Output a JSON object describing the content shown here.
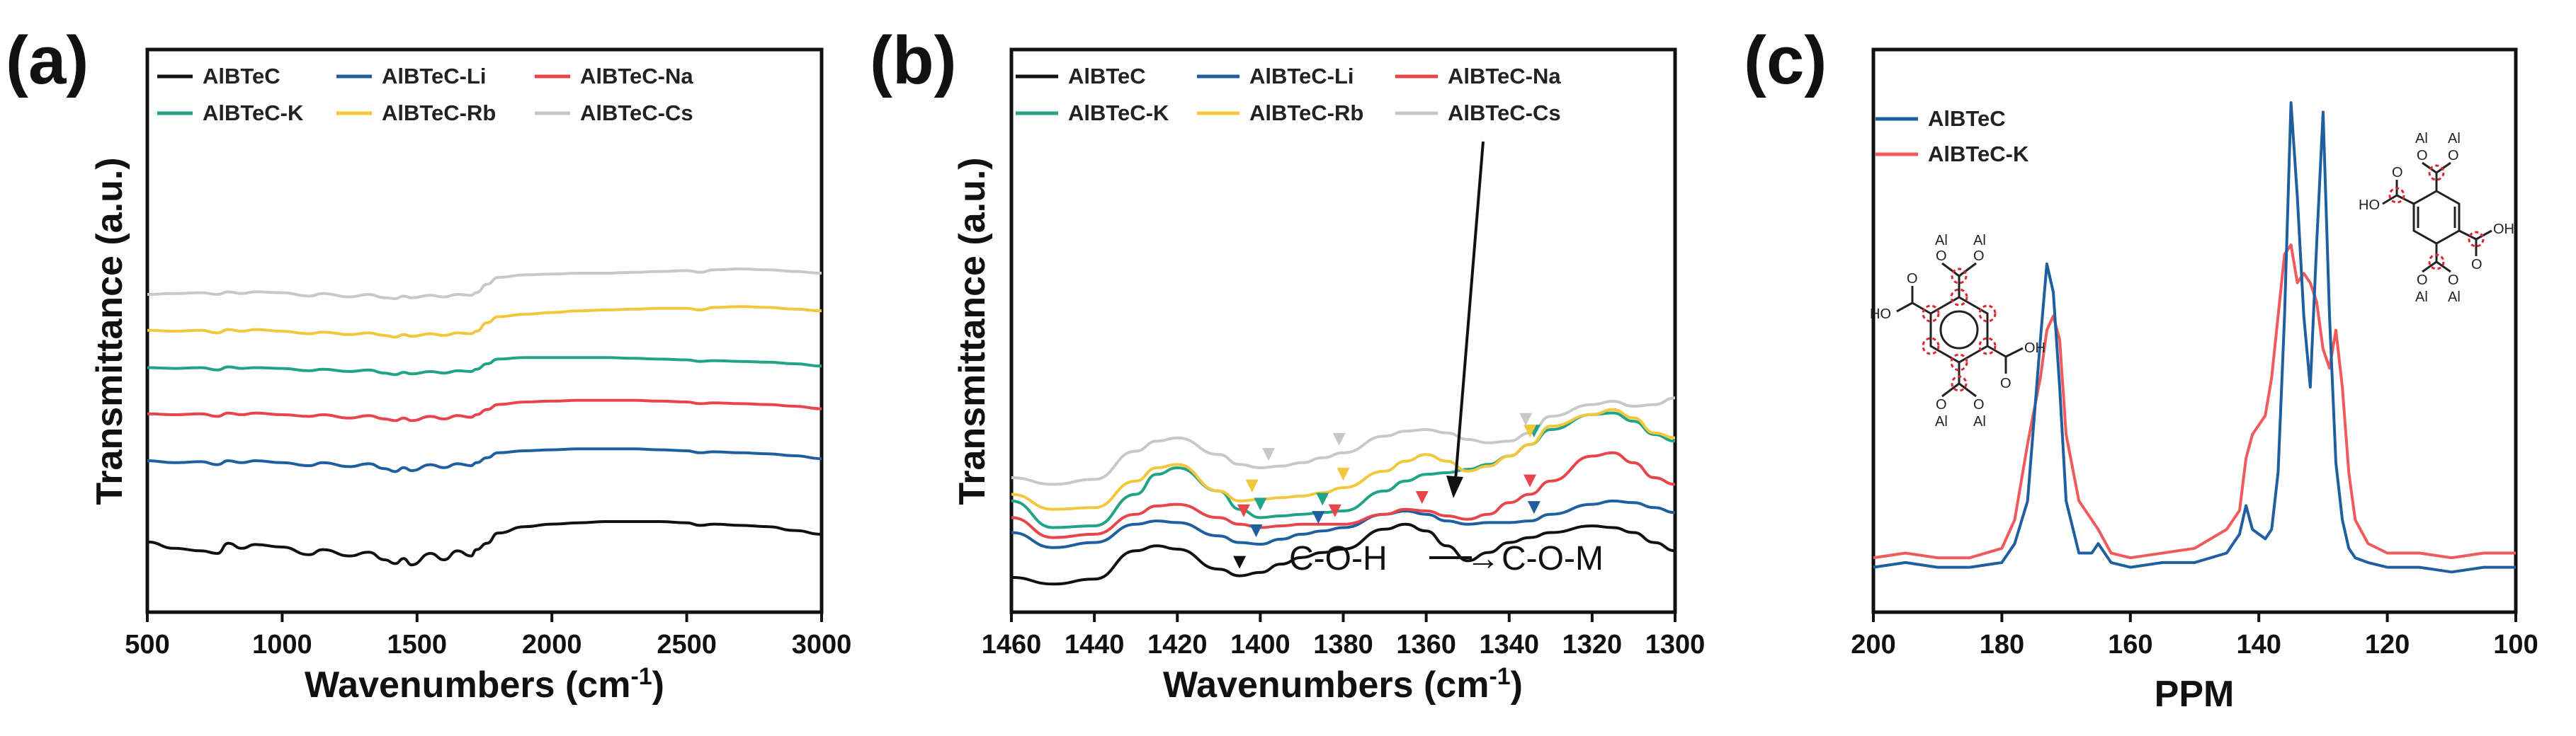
{
  "figure": {
    "panels": [
      "(a)",
      "(b)",
      "(c)"
    ]
  },
  "colors": {
    "AlBTeC": "#111111",
    "AlBTeC-Li": "#1f5fa0",
    "AlBTeC-Na": "#e8444a",
    "AlBTeC-K": "#20a386",
    "AlBTeC-Rb": "#f3c73b",
    "AlBTeC-Cs": "#c8c8c8",
    "nmr_AlBTeC": "#1f5fa0",
    "nmr_AlBTeC-K": "#f05a5a",
    "marker_red": "#d9282e"
  },
  "chart_data": [
    {
      "panel": "(a)",
      "type": "line",
      "title": "",
      "xlabel": "Wavenumbers (cm",
      "xlabel_sup": "-1",
      "xlabel_close": ")",
      "ylabel": "Transmittance (a.u.)",
      "xlim": [
        500,
        3000
      ],
      "xticks": [
        "500",
        "1000",
        "1500",
        "2000",
        "2500",
        "3000"
      ],
      "legend": [
        "AlBTeC",
        "AlBTeC-Li",
        "AlBTeC-Na",
        "AlBTeC-K",
        "AlBTeC-Rb",
        "AlBTeC-Cs"
      ],
      "legend_position": "top",
      "series_order_bottom_to_top": [
        "AlBTeC",
        "AlBTeC-Li",
        "AlBTeC-Na",
        "AlBTeC-K",
        "AlBTeC-Rb",
        "AlBTeC-Cs"
      ],
      "x": [
        500,
        600,
        700,
        760,
        800,
        850,
        900,
        1000,
        1100,
        1150,
        1250,
        1320,
        1380,
        1420,
        1450,
        1480,
        1550,
        1600,
        1650,
        1700,
        1720,
        1760,
        1800,
        1900,
        2000,
        2100,
        2200,
        2300,
        2400,
        2500,
        2550,
        2600,
        2700,
        2800,
        2900,
        3000
      ],
      "series": [
        {
          "name": "AlBTeC",
          "values": [
            0.19,
            0.14,
            0.12,
            0.1,
            0.18,
            0.14,
            0.17,
            0.15,
            0.09,
            0.13,
            0.08,
            0.11,
            0.05,
            0.02,
            0.06,
            0.01,
            0.1,
            0.05,
            0.12,
            0.08,
            0.13,
            0.18,
            0.26,
            0.31,
            0.33,
            0.34,
            0.35,
            0.35,
            0.35,
            0.34,
            0.32,
            0.33,
            0.32,
            0.31,
            0.28,
            0.25
          ]
        },
        {
          "name": "AlBTeC-Li",
          "values": [
            0.35,
            0.33,
            0.34,
            0.31,
            0.35,
            0.33,
            0.35,
            0.33,
            0.3,
            0.33,
            0.29,
            0.32,
            0.27,
            0.24,
            0.28,
            0.25,
            0.31,
            0.28,
            0.32,
            0.3,
            0.33,
            0.38,
            0.43,
            0.45,
            0.46,
            0.47,
            0.47,
            0.47,
            0.46,
            0.45,
            0.43,
            0.44,
            0.43,
            0.42,
            0.4,
            0.37
          ]
        },
        {
          "name": "AlBTeC-Na",
          "values": [
            0.46,
            0.45,
            0.46,
            0.43,
            0.47,
            0.45,
            0.47,
            0.45,
            0.43,
            0.45,
            0.41,
            0.44,
            0.4,
            0.38,
            0.41,
            0.38,
            0.43,
            0.4,
            0.44,
            0.42,
            0.45,
            0.51,
            0.57,
            0.6,
            0.61,
            0.62,
            0.62,
            0.62,
            0.61,
            0.6,
            0.58,
            0.59,
            0.58,
            0.57,
            0.55,
            0.52
          ]
        },
        {
          "name": "AlBTeC-K",
          "values": [
            0.55,
            0.54,
            0.55,
            0.52,
            0.56,
            0.54,
            0.55,
            0.54,
            0.51,
            0.53,
            0.5,
            0.52,
            0.48,
            0.46,
            0.49,
            0.47,
            0.5,
            0.48,
            0.51,
            0.5,
            0.53,
            0.6,
            0.66,
            0.68,
            0.68,
            0.68,
            0.68,
            0.67,
            0.66,
            0.65,
            0.63,
            0.64,
            0.63,
            0.62,
            0.6,
            0.57
          ]
        },
        {
          "name": "AlBTeC-Rb",
          "values": [
            0.61,
            0.6,
            0.61,
            0.58,
            0.62,
            0.6,
            0.62,
            0.6,
            0.57,
            0.59,
            0.56,
            0.58,
            0.55,
            0.53,
            0.56,
            0.54,
            0.57,
            0.55,
            0.58,
            0.57,
            0.6,
            0.7,
            0.77,
            0.8,
            0.82,
            0.84,
            0.85,
            0.86,
            0.87,
            0.87,
            0.85,
            0.88,
            0.89,
            0.88,
            0.86,
            0.84
          ]
        },
        {
          "name": "AlBTeC-Cs",
          "values": [
            0.7,
            0.71,
            0.72,
            0.7,
            0.73,
            0.71,
            0.73,
            0.72,
            0.68,
            0.71,
            0.67,
            0.7,
            0.66,
            0.65,
            0.68,
            0.66,
            0.69,
            0.67,
            0.7,
            0.69,
            0.72,
            0.82,
            0.9,
            0.93,
            0.94,
            0.95,
            0.95,
            0.96,
            0.97,
            0.98,
            0.96,
            0.99,
            1.0,
            0.99,
            0.97,
            0.95
          ]
        }
      ]
    },
    {
      "panel": "(b)",
      "type": "line",
      "title": "",
      "xlabel": "Wavenumbers (cm",
      "xlabel_sup": "-1",
      "xlabel_close": ")",
      "ylabel": "Transmittance (a.u.)",
      "xlim": [
        1460,
        1300
      ],
      "xticks": [
        "1460",
        "1440",
        "1420",
        "1400",
        "1380",
        "1360",
        "1340",
        "1320",
        "1300"
      ],
      "legend": [
        "AlBTeC",
        "AlBTeC-Li",
        "AlBTeC-Na",
        "AlBTeC-K",
        "AlBTeC-Rb",
        "AlBTeC-Cs"
      ],
      "legend_position": "top",
      "annotation": {
        "left": "C-O-H",
        "arrow": "→",
        "right": "C-O-M"
      },
      "x": [
        1460,
        1450,
        1440,
        1430,
        1425,
        1420,
        1410,
        1405,
        1400,
        1395,
        1390,
        1385,
        1380,
        1370,
        1365,
        1360,
        1355,
        1350,
        1345,
        1340,
        1335,
        1330,
        1320,
        1315,
        1310,
        1305,
        1300
      ],
      "series": [
        {
          "name": "AlBTeC",
          "values": [
            0.06,
            0.02,
            0.05,
            0.22,
            0.25,
            0.23,
            0.11,
            0.07,
            0.09,
            0.14,
            0.18,
            0.21,
            0.23,
            0.35,
            0.38,
            0.34,
            0.25,
            0.16,
            0.21,
            0.27,
            0.3,
            0.33,
            0.37,
            0.36,
            0.33,
            0.27,
            0.22
          ]
        },
        {
          "name": "AlBTeC-Li",
          "values": [
            0.33,
            0.24,
            0.27,
            0.38,
            0.4,
            0.39,
            0.31,
            0.27,
            0.26,
            0.29,
            0.32,
            0.34,
            0.36,
            0.44,
            0.46,
            0.44,
            0.4,
            0.38,
            0.39,
            0.39,
            0.4,
            0.44,
            0.5,
            0.52,
            0.51,
            0.48,
            0.45
          ]
        },
        {
          "name": "AlBTeC-Na",
          "values": [
            0.42,
            0.3,
            0.32,
            0.44,
            0.49,
            0.5,
            0.42,
            0.38,
            0.36,
            0.37,
            0.38,
            0.38,
            0.38,
            0.44,
            0.47,
            0.46,
            0.43,
            0.41,
            0.44,
            0.51,
            0.56,
            0.64,
            0.79,
            0.81,
            0.75,
            0.66,
            0.62
          ]
        },
        {
          "name": "AlBTeC-K",
          "values": [
            0.52,
            0.36,
            0.37,
            0.56,
            0.68,
            0.72,
            0.58,
            0.47,
            0.42,
            0.43,
            0.44,
            0.45,
            0.46,
            0.58,
            0.64,
            0.68,
            0.69,
            0.71,
            0.74,
            0.79,
            0.86,
            0.95,
            1.04,
            1.05,
            1.0,
            0.92,
            0.88
          ]
        },
        {
          "name": "AlBTeC-Rb",
          "values": [
            0.56,
            0.47,
            0.48,
            0.64,
            0.72,
            0.74,
            0.58,
            0.52,
            0.53,
            0.54,
            0.55,
            0.57,
            0.6,
            0.7,
            0.76,
            0.8,
            0.76,
            0.7,
            0.73,
            0.79,
            0.86,
            0.97,
            1.04,
            1.07,
            1.02,
            0.93,
            0.9
          ]
        },
        {
          "name": "AlBTeC-Cs",
          "values": [
            0.66,
            0.62,
            0.65,
            0.82,
            0.88,
            0.9,
            0.8,
            0.74,
            0.72,
            0.73,
            0.75,
            0.78,
            0.81,
            0.91,
            0.94,
            0.95,
            0.93,
            0.89,
            0.87,
            0.88,
            0.93,
            1.03,
            1.1,
            1.12,
            1.09,
            1.1,
            1.14
          ]
        }
      ],
      "markers": [
        {
          "series": "AlBTeC",
          "x": 1405
        },
        {
          "series": "AlBTeC-Li",
          "x": 1401
        },
        {
          "series": "AlBTeC-Li",
          "x": 1386
        },
        {
          "series": "AlBTeC-Li",
          "x": 1334
        },
        {
          "series": "AlBTeC-Na",
          "x": 1404
        },
        {
          "series": "AlBTeC-Na",
          "x": 1382
        },
        {
          "series": "AlBTeC-Na",
          "x": 1361
        },
        {
          "series": "AlBTeC-Na",
          "x": 1335
        },
        {
          "series": "AlBTeC-K",
          "x": 1400
        },
        {
          "series": "AlBTeC-K",
          "x": 1385
        },
        {
          "series": "AlBTeC-K",
          "x": 1334
        },
        {
          "series": "AlBTeC-Rb",
          "x": 1402
        },
        {
          "series": "AlBTeC-Rb",
          "x": 1380
        },
        {
          "series": "AlBTeC-Rb",
          "x": 1335
        },
        {
          "series": "AlBTeC-Cs",
          "x": 1398
        },
        {
          "series": "AlBTeC-Cs",
          "x": 1381
        },
        {
          "series": "AlBTeC-Cs",
          "x": 1336
        }
      ]
    },
    {
      "panel": "(c)",
      "type": "line",
      "title": "",
      "xlabel": "PPM",
      "ylabel": "",
      "xlim": [
        200,
        100
      ],
      "xticks": [
        "200",
        "180",
        "160",
        "140",
        "120",
        "100"
      ],
      "legend": [
        "AlBTeC",
        "AlBTeC-K"
      ],
      "legend_position": "top-left",
      "x": [
        200,
        195,
        190,
        185,
        180,
        178,
        176,
        174,
        173,
        172,
        171,
        170,
        168,
        166,
        165,
        163,
        160,
        155,
        150,
        145,
        143,
        142,
        141,
        139,
        138,
        137,
        136,
        135,
        134,
        133,
        132,
        131,
        130,
        129,
        128,
        127,
        126,
        125,
        123,
        120,
        115,
        110,
        105,
        100
      ],
      "series": [
        {
          "name": "AlBTeC",
          "values": [
            0.02,
            0.03,
            0.02,
            0.02,
            0.03,
            0.07,
            0.16,
            0.5,
            0.66,
            0.6,
            0.4,
            0.16,
            0.05,
            0.05,
            0.07,
            0.03,
            0.02,
            0.03,
            0.03,
            0.05,
            0.09,
            0.15,
            0.1,
            0.08,
            0.1,
            0.22,
            0.55,
            1.0,
            0.8,
            0.55,
            0.4,
            0.7,
            0.98,
            0.55,
            0.24,
            0.12,
            0.06,
            0.04,
            0.03,
            0.02,
            0.02,
            0.01,
            0.02,
            0.02
          ]
        },
        {
          "name": "AlBTeC-K",
          "values": [
            0.04,
            0.05,
            0.04,
            0.04,
            0.06,
            0.12,
            0.28,
            0.42,
            0.52,
            0.55,
            0.5,
            0.3,
            0.16,
            0.12,
            0.1,
            0.05,
            0.04,
            0.05,
            0.06,
            0.1,
            0.14,
            0.25,
            0.3,
            0.34,
            0.42,
            0.55,
            0.68,
            0.7,
            0.62,
            0.64,
            0.62,
            0.58,
            0.48,
            0.44,
            0.52,
            0.4,
            0.22,
            0.12,
            0.07,
            0.05,
            0.05,
            0.04,
            0.05,
            0.05
          ]
        }
      ],
      "molecule_labels": {
        "al": "Al",
        "o": "O",
        "oh": "HO",
        "oh_right": "OH"
      }
    }
  ]
}
